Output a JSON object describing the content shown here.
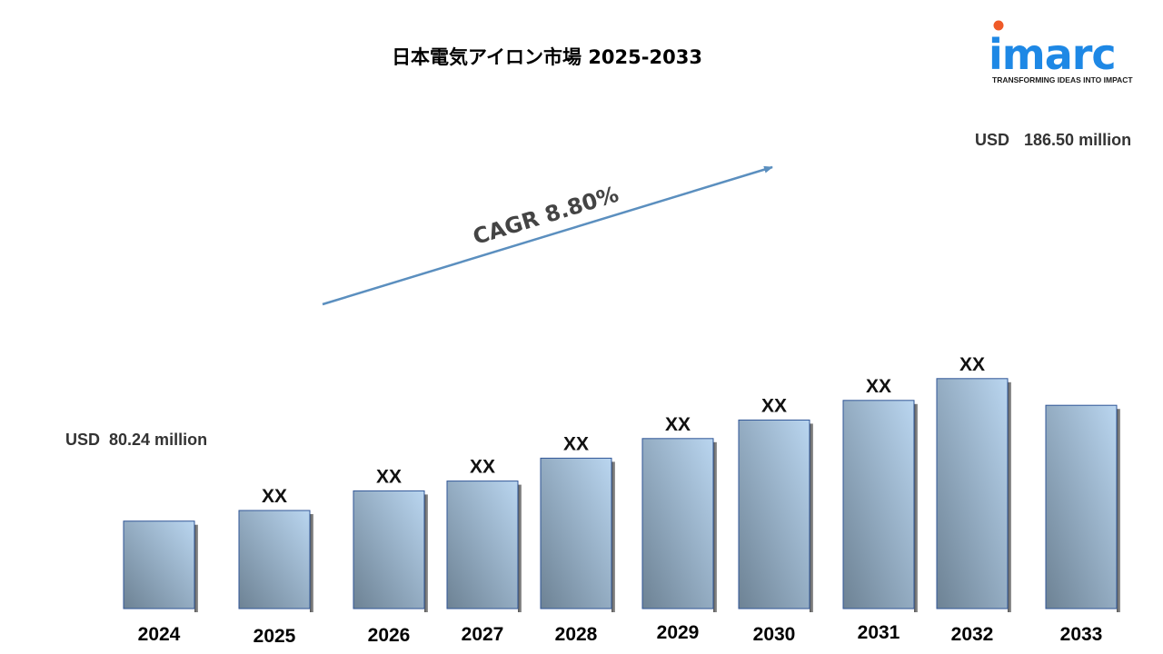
{
  "chart_data": {
    "type": "bar",
    "title": "日本電気アイロン市場  2025-2033",
    "categories": [
      "2024",
      "2025",
      "2026",
      "2027",
      "2028",
      "2029",
      "2030",
      "2031",
      "2032",
      "2033"
    ],
    "values": [
      80.24,
      90,
      108,
      117,
      138,
      156,
      173,
      191,
      211,
      186.5
    ],
    "bar_labels": [
      "",
      "XX",
      "XX",
      "XX",
      "XX",
      "XX",
      "XX",
      "XX",
      "XX",
      ""
    ],
    "start_annotation": {
      "unit": "USD",
      "value": "80.24 million"
    },
    "end_annotation": {
      "unit": "USD",
      "value": "186.50 million"
    },
    "cagr_label": "CAGR 8.80%",
    "grid": false,
    "legend": "none"
  },
  "logo": {
    "name": "imarc",
    "tagline": "TRANSFORMING IDEAS INTO IMPACT"
  },
  "colors": {
    "bar_light": "#bad6f0",
    "bar_dark": "#6d8294",
    "bar_border": "#2f5597",
    "arrow": "#5b8fbf",
    "brand": "#1e88e5"
  }
}
